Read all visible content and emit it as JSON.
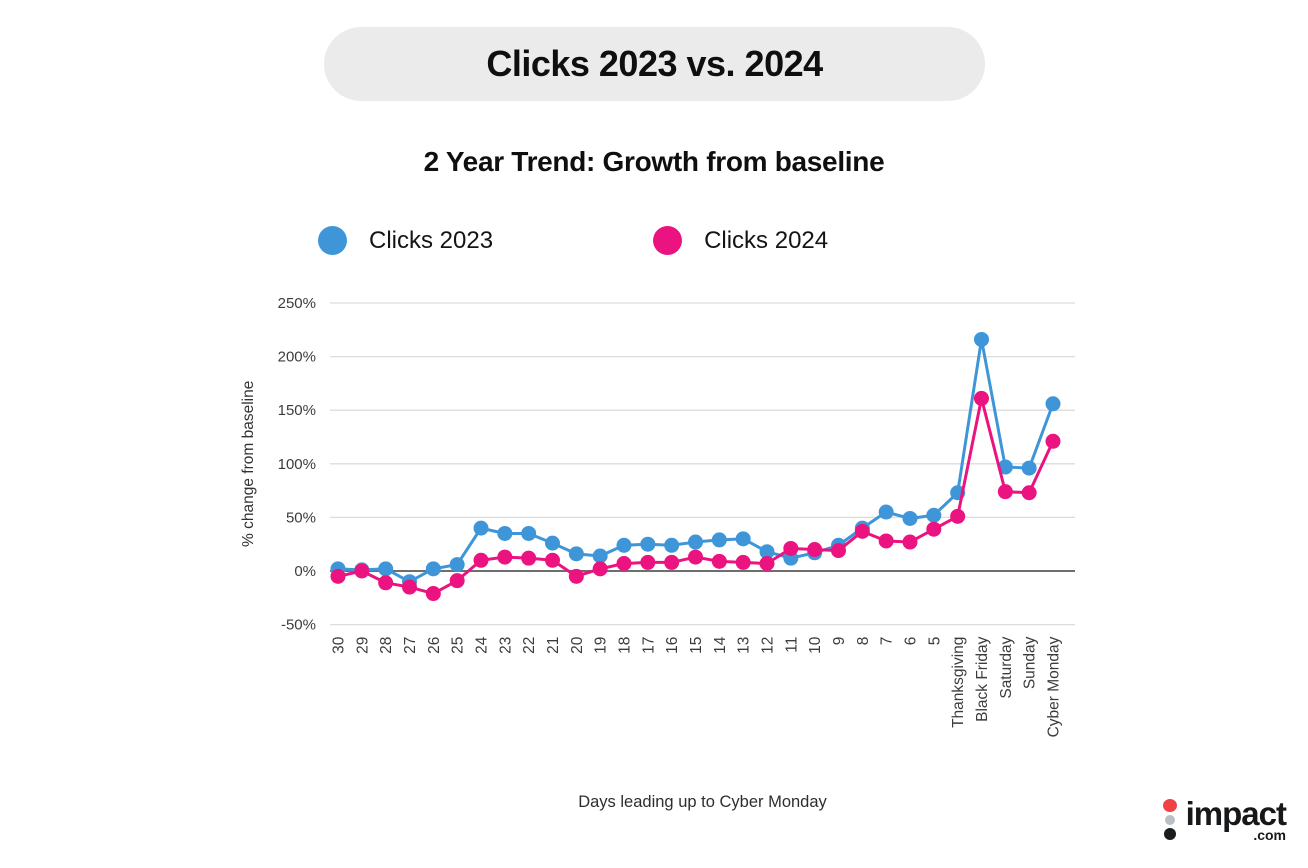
{
  "title": "Clicks 2023 vs. 2024",
  "subtitle": "2 Year Trend: Growth from baseline",
  "legend": [
    {
      "label": "Clicks 2023",
      "color": "#3e96d9"
    },
    {
      "label": "Clicks 2024",
      "color": "#eb1380"
    }
  ],
  "chart_data": {
    "type": "line",
    "title": "Clicks 2023 vs. 2024",
    "subtitle": "2 Year Trend: Growth from baseline",
    "xlabel": "Days leading up to Cyber Monday",
    "ylabel": "% change from baseline",
    "ylim": [
      -50,
      250
    ],
    "yticks": [
      250,
      200,
      150,
      100,
      50,
      0,
      -50
    ],
    "ytick_suffix": "%",
    "grid": true,
    "legend_position": "top",
    "marker": "circle",
    "categories": [
      "30",
      "29",
      "28",
      "27",
      "26",
      "25",
      "24",
      "23",
      "22",
      "21",
      "20",
      "19",
      "18",
      "17",
      "16",
      "15",
      "14",
      "13",
      "12",
      "11",
      "10",
      "9",
      "8",
      "7",
      "6",
      "5",
      "Thanksgiving",
      "Black Friday",
      "Saturday",
      "Sunday",
      "Cyber Monday"
    ],
    "series": [
      {
        "name": "Clicks 2023",
        "color": "#3e96d9",
        "values": [
          2,
          1,
          2,
          -10,
          2,
          6,
          40,
          35,
          35,
          26,
          16,
          14,
          24,
          25,
          24,
          27,
          29,
          30,
          18,
          12,
          17,
          24,
          40,
          55,
          49,
          52,
          73,
          216,
          97,
          96,
          156
        ]
      },
      {
        "name": "Clicks 2024",
        "color": "#eb1380",
        "values": [
          -5,
          0,
          -11,
          -15,
          -21,
          -9,
          10,
          13,
          12,
          10,
          -5,
          2,
          7,
          8,
          8,
          13,
          9,
          8,
          7,
          21,
          20,
          19,
          37,
          28,
          27,
          39,
          51,
          161,
          74,
          73,
          121
        ]
      }
    ]
  },
  "colors": {
    "grid": "#dcdcdc",
    "zero_line": "#6e6e6e",
    "axis_text": "#3c3c3c"
  },
  "logo": {
    "text": "impact",
    "tld": ".com",
    "dot_colors": [
      "#ef4146",
      "#b9bfc4",
      "#1a1c1e"
    ]
  }
}
